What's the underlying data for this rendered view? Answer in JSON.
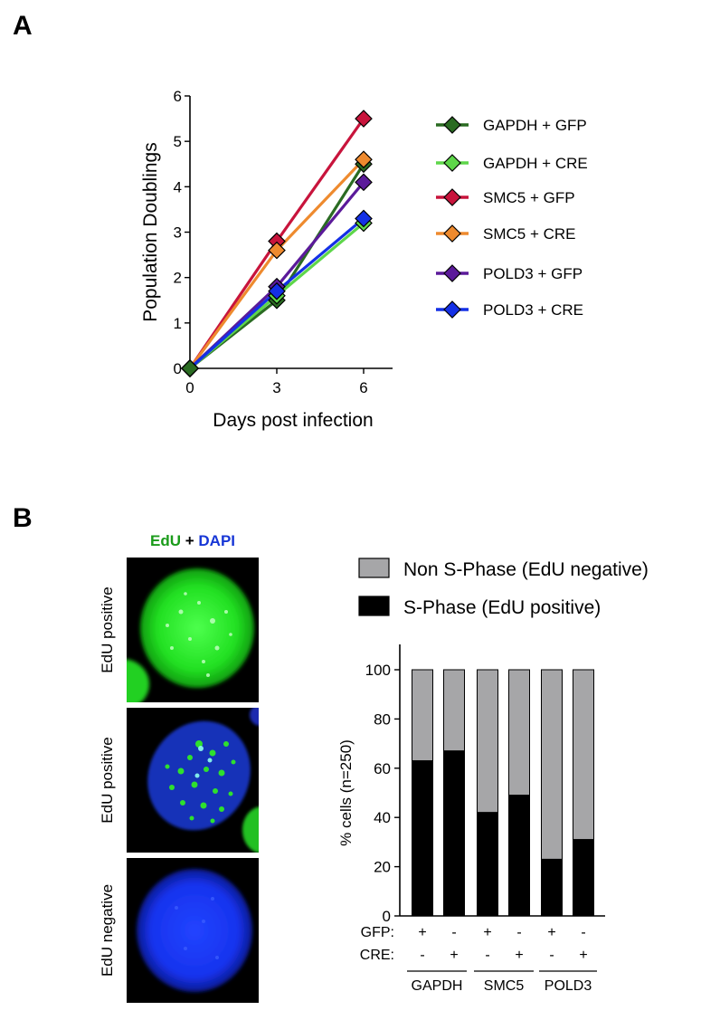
{
  "panels": {
    "a_letter": "A",
    "b_letter": "B"
  },
  "microscopy": {
    "stain_edu": "EdU",
    "stain_plus": "+",
    "stain_dapi": "DAPI",
    "images": [
      {
        "label": "EdU positive"
      },
      {
        "label": "EdU positive"
      },
      {
        "label": "EdU negative"
      }
    ]
  },
  "chart_data": [
    {
      "type": "line",
      "xlabel": "Days post infection",
      "ylabel": "Population Doublings",
      "x": [
        0,
        3,
        6
      ],
      "xticks": [
        0,
        3,
        6
      ],
      "xlim": [
        0,
        7
      ],
      "ylim": [
        0,
        6
      ],
      "yticks": [
        0,
        1,
        2,
        3,
        4,
        5,
        6
      ],
      "legend_position": "right",
      "series": [
        {
          "name": "GAPDH + GFP",
          "color": "#2a6b22",
          "values": [
            0,
            1.5,
            4.5
          ]
        },
        {
          "name": "GAPDH + CRE",
          "color": "#5ed64a",
          "values": [
            0,
            1.6,
            3.2
          ]
        },
        {
          "name": "SMC5 + GFP",
          "color": "#c8143c",
          "values": [
            0,
            2.8,
            5.5
          ]
        },
        {
          "name": "SMC5 + CRE",
          "color": "#ee8a2e",
          "values": [
            0,
            2.6,
            4.6
          ]
        },
        {
          "name": "POLD3 + GFP",
          "color": "#5b1a9a",
          "values": [
            0,
            1.8,
            4.1
          ]
        },
        {
          "name": "POLD3 + CRE",
          "color": "#1430e6",
          "values": [
            0,
            1.7,
            3.3
          ]
        }
      ]
    },
    {
      "type": "bar",
      "stacked": true,
      "ylabel": "% cells (n=250)",
      "ylim": [
        0,
        100
      ],
      "yticks": [
        0,
        20,
        40,
        60,
        80,
        100
      ],
      "legend_position": "top",
      "categories": [
        "GAPDH GFP",
        "GAPDH CRE",
        "SMC5 GFP",
        "SMC5 CRE",
        "POLD3 GFP",
        "POLD3 CRE"
      ],
      "row_labels": {
        "gfp": "GFP:",
        "cre": "CRE:"
      },
      "gfp_marks": [
        "+",
        "-",
        "+",
        "-",
        "+",
        "-"
      ],
      "cre_marks": [
        "-",
        "+",
        "-",
        "+",
        "-",
        "+"
      ],
      "groups": [
        "GAPDH",
        "SMC5",
        "POLD3"
      ],
      "series": [
        {
          "name": "Non S-Phase (EdU negative)",
          "color": "#a6a6a8",
          "values": [
            37,
            33,
            58,
            51,
            77,
            69
          ]
        },
        {
          "name": "S-Phase (EdU positive)",
          "color": "#000000",
          "values": [
            63,
            67,
            42,
            49,
            23,
            31
          ]
        }
      ]
    }
  ]
}
